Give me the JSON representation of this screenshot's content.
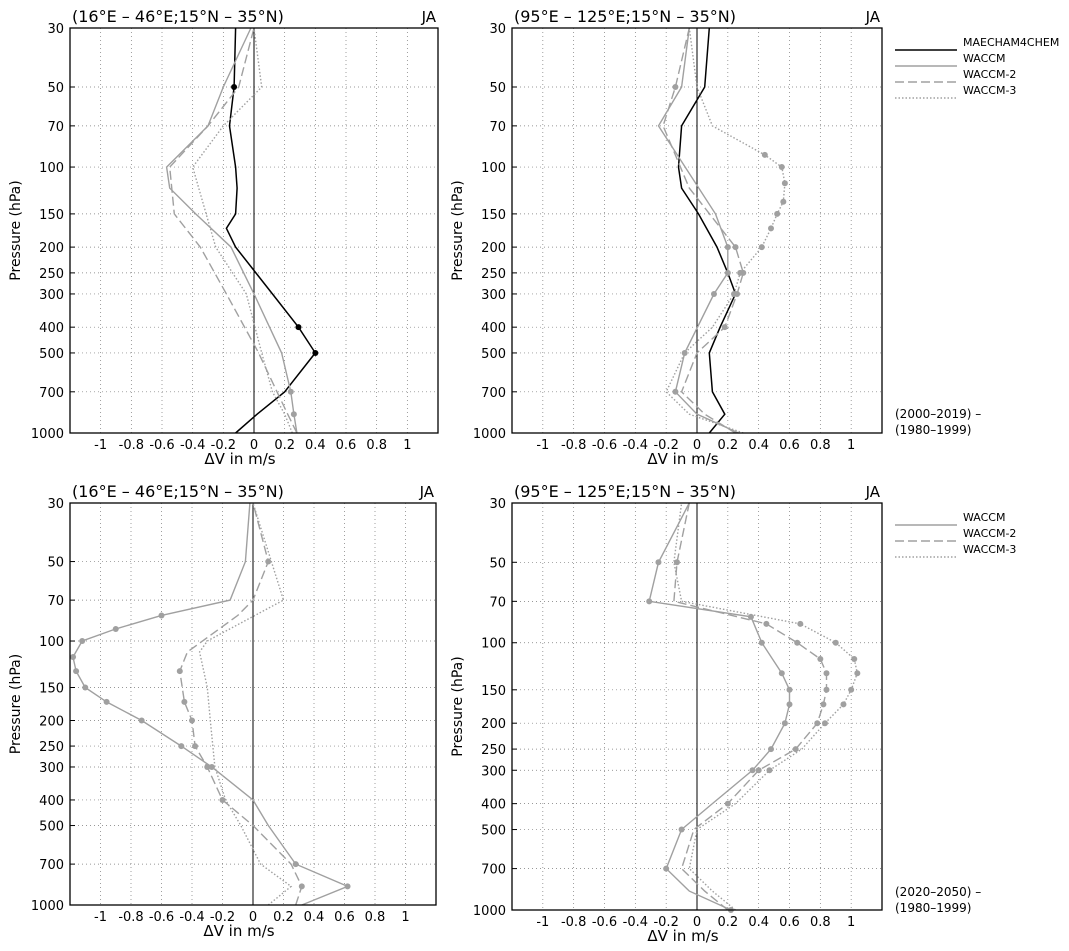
{
  "colors": {
    "maecham": "#000000",
    "waccm_gray": "#a0a0a0",
    "grid": "#777777"
  },
  "legends": {
    "top": {
      "entries": [
        {
          "series": "MAECHAM4CHEM",
          "style": "solid-black"
        },
        {
          "series": "WACCM",
          "style": "solid-gray"
        },
        {
          "series": "WACCM-2",
          "style": "dashed-gray"
        },
        {
          "series": "WACCM-3",
          "style": "dotted-gray"
        }
      ],
      "period_line1": "(2000–2019) –",
      "period_line2": "(1980–1999)"
    },
    "bottom": {
      "entries": [
        {
          "series": "WACCM",
          "style": "solid-gray"
        },
        {
          "series": "WACCM-2",
          "style": "dashed-gray"
        },
        {
          "series": "WACCM-3",
          "style": "dotted-gray"
        }
      ],
      "period_line1": "(2020–2050) –",
      "period_line2": "(1980–1999)"
    }
  },
  "chart_data": [
    {
      "type": "line",
      "title": "(16°E – 46°E;15°N – 35°N)",
      "season": "JA",
      "xlabel": "ΔV in m/s",
      "ylabel": "Pressure (hPa)",
      "xlim": [
        -1.2,
        1.2
      ],
      "ylim": [
        1000,
        30
      ],
      "yscale": "log",
      "xticks": [
        "-1",
        "-0.8",
        "-0.6",
        "-0.4",
        "-0.2",
        "0",
        "0.2",
        "0.4",
        "0.6",
        "0.8",
        "1"
      ],
      "yticks": [
        "30",
        "50",
        "70",
        "100",
        "150",
        "200",
        "250",
        "300",
        "400",
        "500",
        "700",
        "1000"
      ],
      "grid": true,
      "series": [
        {
          "name": "MAECHAM4CHEM",
          "style": "solid-black",
          "x": [
            -0.12,
            0.02,
            0.2,
            0.4,
            0.29,
            0.12,
            -0.12,
            -0.18,
            -0.12,
            -0.11,
            -0.12,
            -0.16,
            -0.13,
            -0.12
          ],
          "y": [
            1000,
            850,
            700,
            500,
            400,
            300,
            200,
            170,
            150,
            120,
            100,
            70,
            50,
            30
          ],
          "markers": [
            0,
            0,
            0,
            1,
            1,
            0,
            0,
            0,
            0,
            0,
            0,
            0,
            1,
            0
          ]
        },
        {
          "name": "WACCM",
          "style": "solid-gray",
          "x": [
            0.28,
            0.26,
            0.24,
            0.18,
            0.0,
            -0.15,
            -0.38,
            -0.55,
            -0.57,
            -0.3,
            -0.2,
            -0.02
          ],
          "y": [
            1000,
            850,
            700,
            500,
            300,
            200,
            150,
            120,
            100,
            70,
            50,
            30
          ],
          "markers": [
            0,
            1,
            1,
            0,
            0,
            0,
            0,
            0,
            0,
            0,
            0,
            0
          ]
        },
        {
          "name": "WACCM-2",
          "style": "dashed-gray",
          "x": [
            0.28,
            0.22,
            0.15,
            0.03,
            -0.18,
            -0.35,
            -0.52,
            -0.55,
            -0.3,
            -0.1,
            0.0
          ],
          "y": [
            1000,
            850,
            700,
            500,
            300,
            200,
            150,
            100,
            70,
            50,
            30
          ],
          "markers": [
            0,
            0,
            0,
            0,
            0,
            0,
            0,
            0,
            0,
            0,
            0
          ]
        },
        {
          "name": "WACCM-3",
          "style": "dotted-gray",
          "x": [
            0.25,
            0.2,
            0.12,
            0.05,
            -0.05,
            -0.25,
            -0.4,
            -0.2,
            0.05,
            0.0
          ],
          "y": [
            1000,
            850,
            700,
            500,
            300,
            200,
            100,
            70,
            50,
            30
          ],
          "markers": [
            0,
            0,
            0,
            0,
            0,
            0,
            0,
            0,
            0,
            0
          ]
        }
      ]
    },
    {
      "type": "line",
      "title": "(95°E – 125°E;15°N – 35°N)",
      "season": "JA",
      "xlabel": "ΔV in m/s",
      "ylabel": "Pressure (hPa)",
      "xlim": [
        -1.2,
        1.2
      ],
      "ylim": [
        1000,
        30
      ],
      "yscale": "log",
      "xticks": [
        "-1",
        "-0.8",
        "-0.6",
        "-0.4",
        "-0.2",
        "0",
        "0.2",
        "0.4",
        "0.6",
        "0.8",
        "1"
      ],
      "yticks": [
        "30",
        "50",
        "70",
        "100",
        "150",
        "200",
        "250",
        "300",
        "400",
        "500",
        "700",
        "1000"
      ],
      "grid": true,
      "series": [
        {
          "name": "MAECHAM4CHEM",
          "style": "solid-black",
          "x": [
            0.08,
            0.18,
            0.1,
            0.08,
            0.15,
            0.25,
            0.2,
            0.13,
            0.01,
            -0.1,
            -0.12,
            -0.1,
            0.05,
            0.08
          ],
          "y": [
            1000,
            850,
            700,
            500,
            400,
            300,
            250,
            200,
            150,
            120,
            100,
            70,
            50,
            30
          ],
          "markers": [
            0,
            0,
            0,
            0,
            0,
            0,
            0,
            0,
            0,
            0,
            0,
            0,
            0,
            0
          ]
        },
        {
          "name": "WACCM",
          "style": "solid-gray",
          "x": [
            0.27,
            0.0,
            -0.14,
            -0.08,
            0.11,
            0.2,
            0.2,
            0.12,
            -0.25,
            -0.1,
            -0.05
          ],
          "y": [
            1000,
            850,
            700,
            500,
            300,
            250,
            200,
            150,
            70,
            50,
            30
          ],
          "markers": [
            0,
            0,
            1,
            1,
            1,
            1,
            1,
            0,
            0,
            0,
            0
          ]
        },
        {
          "name": "WACCM-2",
          "style": "dashed-gray",
          "x": [
            0.25,
            0.05,
            -0.1,
            0.0,
            0.18,
            0.26,
            0.3,
            0.25,
            -0.05,
            -0.22,
            -0.14,
            -0.05
          ],
          "y": [
            1000,
            850,
            700,
            500,
            400,
            300,
            250,
            200,
            120,
            70,
            50,
            30
          ],
          "markers": [
            0,
            0,
            0,
            0,
            1,
            1,
            1,
            1,
            0,
            0,
            1,
            0
          ]
        },
        {
          "name": "WACCM-3",
          "style": "dotted-gray",
          "x": [
            0.3,
            -0.05,
            -0.2,
            -0.08,
            0.1,
            0.24,
            0.28,
            0.42,
            0.48,
            0.52,
            0.56,
            0.57,
            0.55,
            0.44,
            0.1,
            0.0,
            -0.05
          ],
          "y": [
            1000,
            850,
            700,
            500,
            400,
            300,
            250,
            200,
            170,
            150,
            135,
            115,
            100,
            90,
            70,
            50,
            30
          ],
          "markers": [
            0,
            0,
            0,
            0,
            0,
            1,
            1,
            1,
            1,
            1,
            1,
            1,
            1,
            1,
            0,
            0,
            0
          ]
        }
      ]
    },
    {
      "type": "line",
      "title": "(16°E – 46°E;15°N – 35°N)",
      "season": "JA",
      "xlabel": "ΔV in m/s",
      "ylabel": "Pressure (hPa)",
      "xlim": [
        -1.2,
        1.2
      ],
      "ylim": [
        1000,
        30
      ],
      "yscale": "log",
      "xticks": [
        "-1",
        "-0.8",
        "-0.6",
        "-0.4",
        "-0.2",
        "0",
        "0.2",
        "0.4",
        "0.6",
        "0.8",
        "1"
      ],
      "yticks": [
        "30",
        "50",
        "70",
        "100",
        "150",
        "200",
        "250",
        "300",
        "400",
        "500",
        "700",
        "1000"
      ],
      "grid": true,
      "series": [
        {
          "name": "WACCM",
          "style": "solid-gray",
          "x": [
            0.32,
            0.62,
            0.28,
            0.1,
            0.0,
            -0.27,
            -0.47,
            -0.73,
            -0.96,
            -1.1,
            -1.16,
            -1.18,
            -1.12,
            -0.9,
            -0.6,
            -0.15,
            -0.05,
            -0.02
          ],
          "y": [
            1000,
            850,
            700,
            500,
            400,
            300,
            250,
            200,
            170,
            150,
            130,
            115,
            100,
            90,
            80,
            70,
            50,
            30
          ],
          "markers": [
            0,
            1,
            1,
            0,
            0,
            1,
            1,
            1,
            1,
            1,
            1,
            1,
            1,
            1,
            1,
            0,
            0,
            0
          ]
        },
        {
          "name": "WACCM-2",
          "style": "dashed-gray",
          "x": [
            0.28,
            0.32,
            0.25,
            0.0,
            -0.2,
            -0.3,
            -0.38,
            -0.4,
            -0.45,
            -0.48,
            -0.43,
            -0.1,
            0.0,
            0.1,
            0.0
          ],
          "y": [
            1000,
            850,
            700,
            500,
            400,
            300,
            250,
            200,
            170,
            130,
            110,
            80,
            70,
            50,
            30
          ],
          "markers": [
            0,
            1,
            0,
            0,
            1,
            1,
            1,
            1,
            1,
            1,
            0,
            0,
            0,
            1,
            0
          ]
        },
        {
          "name": "WACCM-3",
          "style": "dotted-gray",
          "x": [
            0.1,
            0.25,
            0.05,
            -0.08,
            -0.18,
            -0.25,
            -0.28,
            -0.3,
            -0.35,
            -0.3,
            0.2,
            0.0
          ],
          "y": [
            1000,
            850,
            700,
            500,
            400,
            300,
            200,
            150,
            110,
            100,
            70,
            30
          ],
          "markers": [
            0,
            0,
            0,
            0,
            0,
            0,
            0,
            0,
            0,
            0,
            0,
            0
          ]
        }
      ]
    },
    {
      "type": "line",
      "title": "(95°E – 125°E;15°N – 35°N)",
      "season": "JA",
      "xlabel": "ΔV in m/s",
      "ylabel": "Pressure (hPa)",
      "xlim": [
        -1.2,
        1.2
      ],
      "ylim": [
        1000,
        30
      ],
      "yscale": "log",
      "xticks": [
        "-1",
        "-0.8",
        "-0.6",
        "-0.4",
        "-0.2",
        "0",
        "0.2",
        "0.4",
        "0.6",
        "0.8",
        "1"
      ],
      "yticks": [
        "30",
        "50",
        "70",
        "100",
        "150",
        "200",
        "250",
        "300",
        "400",
        "500",
        "700",
        "1000"
      ],
      "grid": true,
      "series": [
        {
          "name": "WACCM",
          "style": "solid-gray",
          "x": [
            0.22,
            -0.05,
            -0.2,
            -0.1,
            0.1,
            0.36,
            0.48,
            0.57,
            0.6,
            0.6,
            0.55,
            0.42,
            0.35,
            -0.31,
            -0.25,
            -0.05
          ],
          "y": [
            1000,
            850,
            700,
            500,
            400,
            300,
            250,
            200,
            170,
            150,
            130,
            100,
            80,
            70,
            50,
            30
          ],
          "markers": [
            1,
            0,
            1,
            1,
            0,
            1,
            1,
            1,
            1,
            1,
            1,
            1,
            1,
            1,
            1,
            0
          ]
        },
        {
          "name": "WACCM-2",
          "style": "dashed-gray",
          "x": [
            0.2,
            0.05,
            -0.1,
            -0.02,
            0.2,
            0.4,
            0.64,
            0.78,
            0.82,
            0.84,
            0.84,
            0.8,
            0.65,
            0.45,
            -0.15,
            -0.13,
            -0.05
          ],
          "y": [
            1000,
            850,
            700,
            500,
            400,
            300,
            250,
            200,
            170,
            150,
            130,
            115,
            100,
            85,
            70,
            50,
            30
          ],
          "markers": [
            0,
            0,
            0,
            0,
            1,
            1,
            1,
            1,
            1,
            1,
            1,
            1,
            1,
            1,
            0,
            1,
            0
          ]
        },
        {
          "name": "WACCM-3",
          "style": "dotted-gray",
          "x": [
            0.25,
            0.1,
            -0.05,
            0.0,
            0.25,
            0.47,
            0.68,
            0.83,
            0.95,
            1.0,
            1.04,
            1.02,
            0.9,
            0.67,
            -0.1,
            -0.15,
            -0.1
          ],
          "y": [
            1000,
            850,
            700,
            500,
            400,
            300,
            250,
            200,
            170,
            150,
            130,
            115,
            100,
            85,
            70,
            50,
            30
          ],
          "markers": [
            0,
            0,
            0,
            0,
            0,
            1,
            0,
            1,
            1,
            1,
            1,
            1,
            1,
            1,
            0,
            0,
            0
          ]
        }
      ]
    }
  ]
}
